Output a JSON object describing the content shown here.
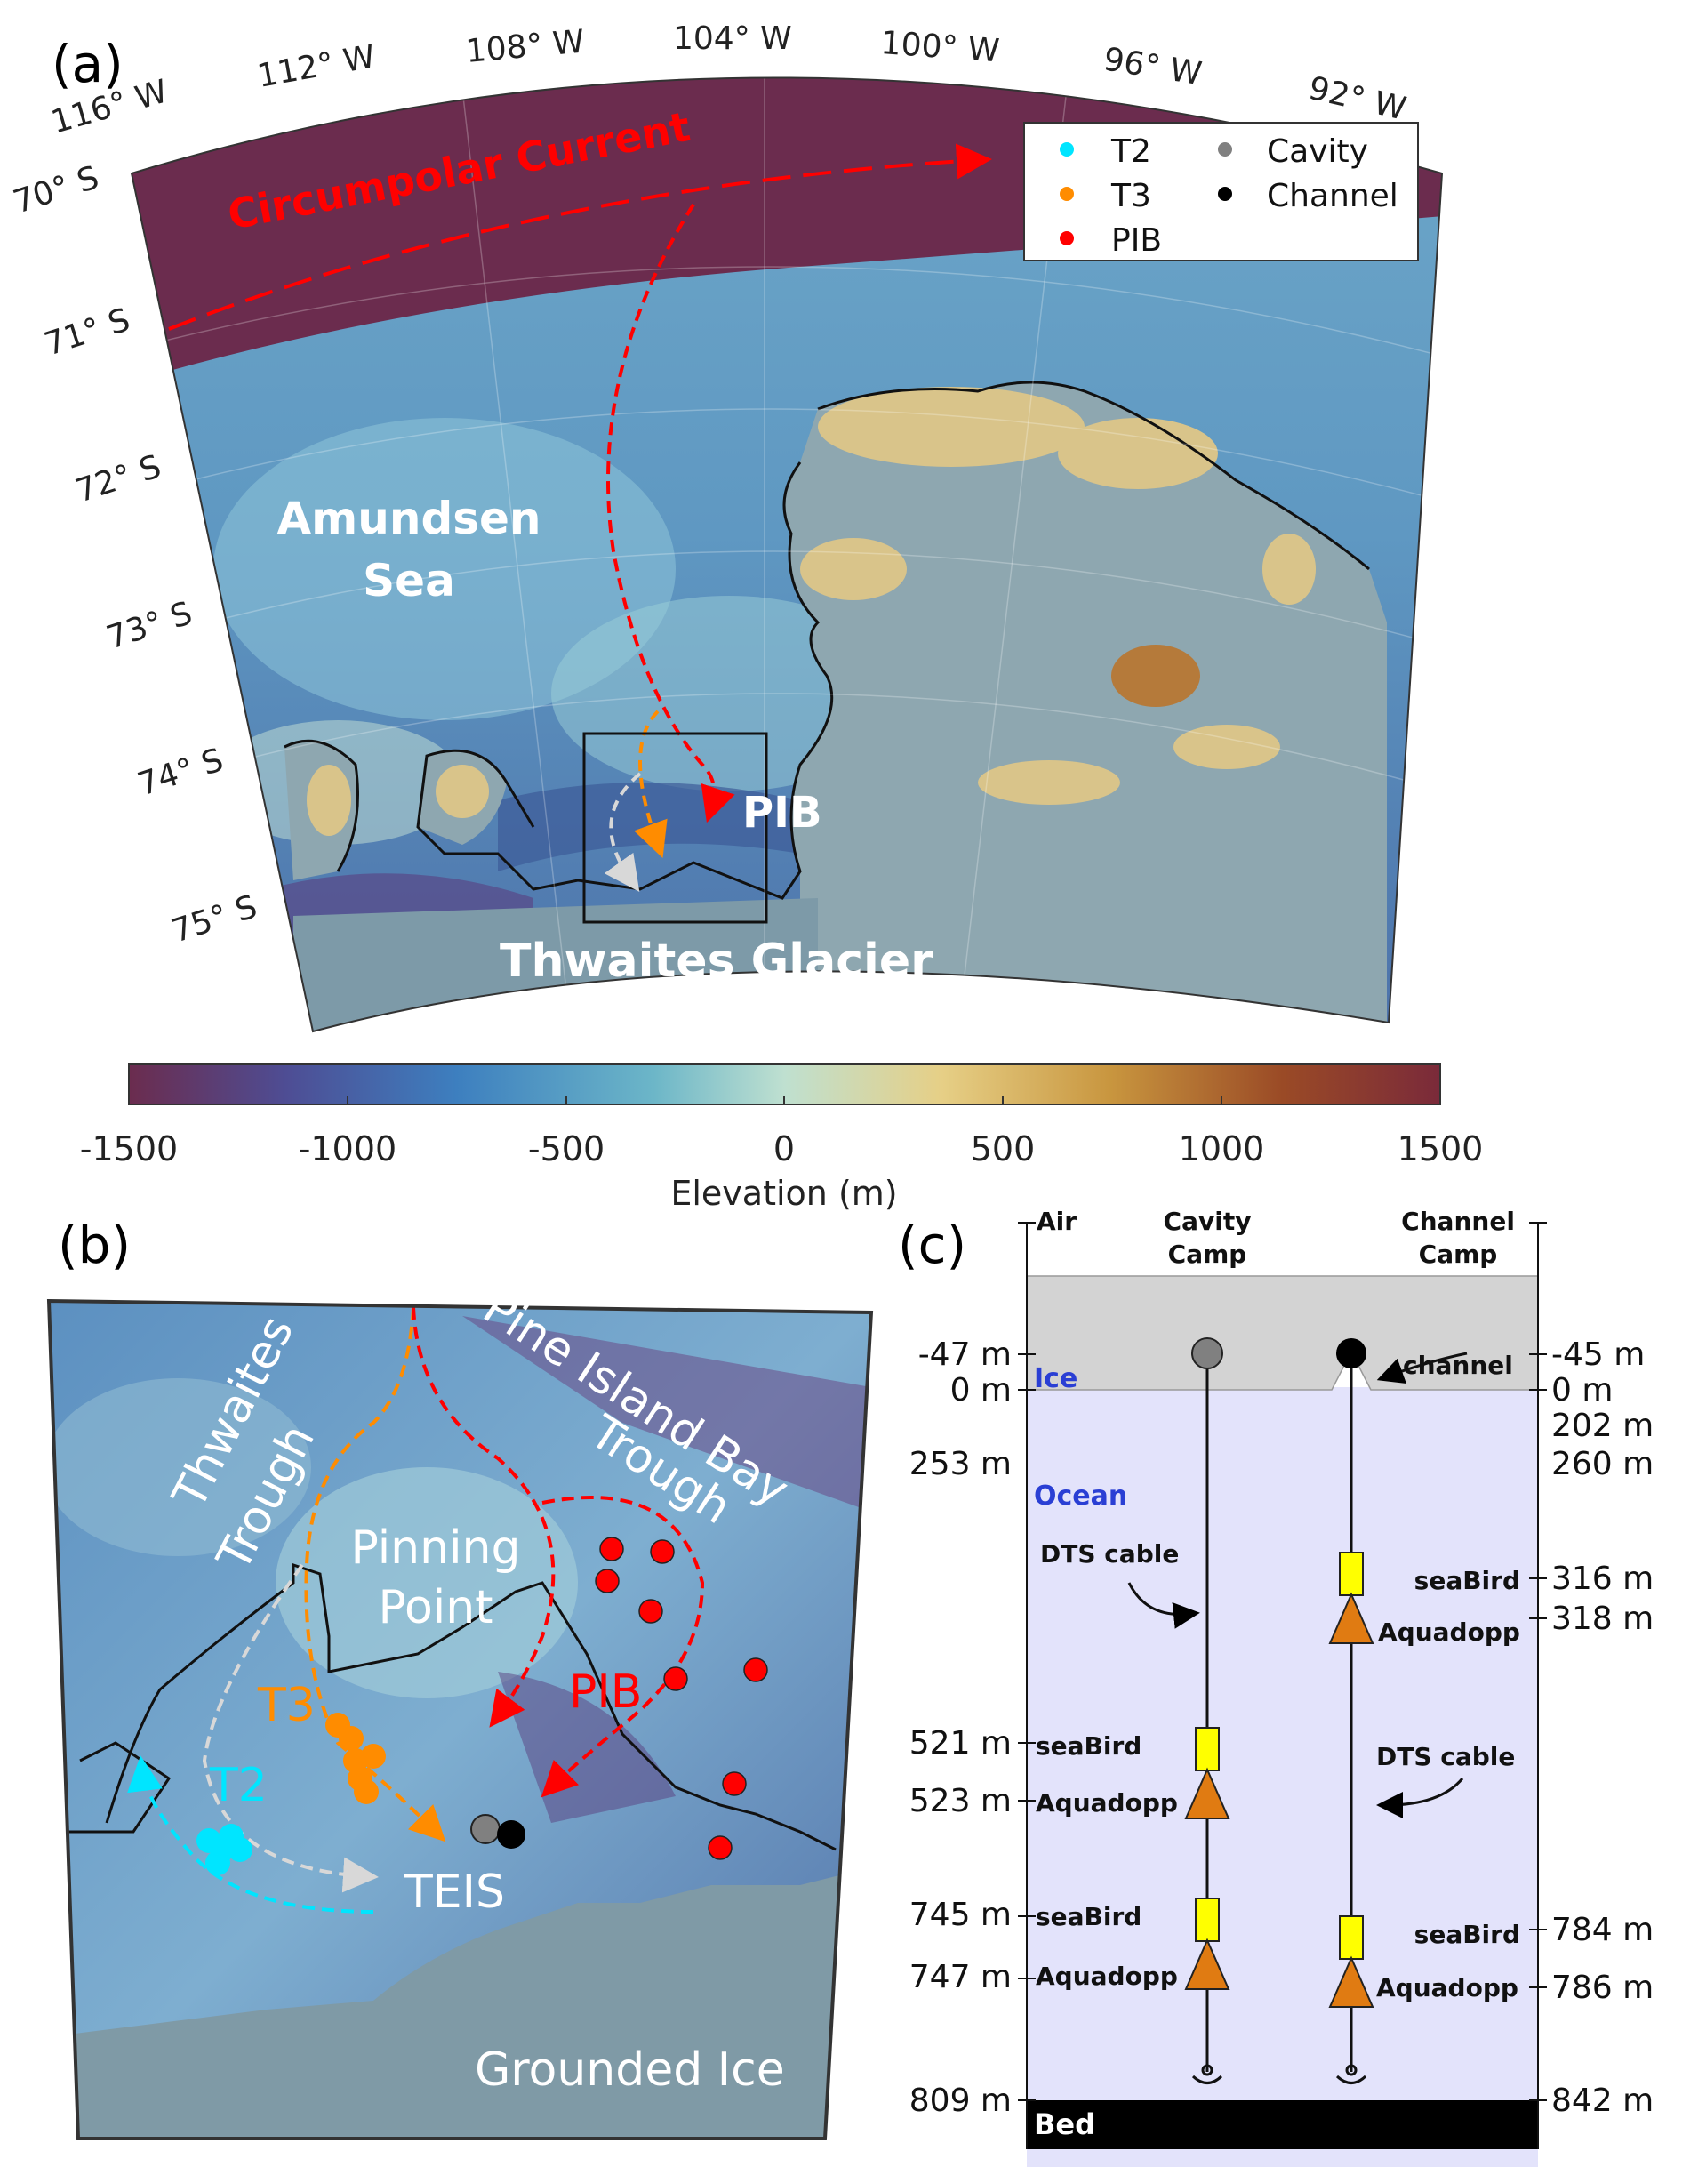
{
  "panel_a": {
    "label": "(a)",
    "longitudes": [
      "116° W",
      "112° W",
      "108° W",
      "104° W",
      "100° W",
      "96° W",
      "92° W"
    ],
    "latitudes": [
      "70° S",
      "71° S",
      "72° S",
      "73° S",
      "74° S",
      "75° S"
    ],
    "place_names": {
      "current": "Circumpolar Current",
      "sea_line1": "Amundsen",
      "sea_line2": "Sea",
      "pib": "PIB",
      "glacier": "Thwaites Glacier"
    },
    "legend": [
      {
        "label": "T2",
        "color": "#00e5ff"
      },
      {
        "label": "T3",
        "color": "#ff8c00"
      },
      {
        "label": "PIB",
        "color": "#ff0000"
      },
      {
        "label": "Cavity",
        "color": "#808080"
      },
      {
        "label": "Channel",
        "color": "#000000"
      }
    ]
  },
  "colorbar": {
    "ticks": [
      "-1500",
      "-1000",
      "-500",
      "0",
      "500",
      "1000",
      "1500"
    ],
    "label": "Elevation (m)",
    "colors": [
      "#6b2c4e",
      "#4e4d94",
      "#3d7fbf",
      "#6cb6c8",
      "#bfe0d0",
      "#e6cf86",
      "#c8953e",
      "#9a4a26",
      "#7a2a3a"
    ]
  },
  "panel_b": {
    "label": "(b)",
    "names": {
      "thwaites_line1": "Thwaites",
      "thwaites_line2": "Trough",
      "pib_line1": "Pine Island Bay",
      "pib_line2": "Trough",
      "pinning_line1": "Pinning",
      "pinning_line2": "Point",
      "t3": "T3",
      "t2": "T2",
      "pib": "PIB",
      "teis": "TEIS",
      "grounded": "Grounded Ice"
    }
  },
  "panel_c": {
    "label": "(c)",
    "top": {
      "air": "Air",
      "cavity_line1": "Cavity",
      "cavity_line2": "Camp",
      "channel_line1": "Channel",
      "channel_line2": "Camp"
    },
    "layers": {
      "ice": "Ice",
      "ocean": "Ocean",
      "bed": "Bed"
    },
    "left_depths": [
      "-47 m",
      "0 m",
      "253 m",
      "521 m",
      "523 m",
      "745 m",
      "747 m",
      "809 m"
    ],
    "right_depths": [
      "-45 m",
      "0 m",
      "202 m",
      "260 m",
      "316 m",
      "318 m",
      "784 m",
      "786 m",
      "842 m"
    ],
    "annotations": {
      "channel": "channel",
      "dts_cable": "DTS cable",
      "seabird": "seaBird",
      "aquadopp": "Aquadopp"
    },
    "colors": {
      "ice": "#d3d3d3",
      "ocean": "#e3e3fb",
      "seabird": "#ffff00",
      "aquadopp": "#e07b12"
    }
  }
}
